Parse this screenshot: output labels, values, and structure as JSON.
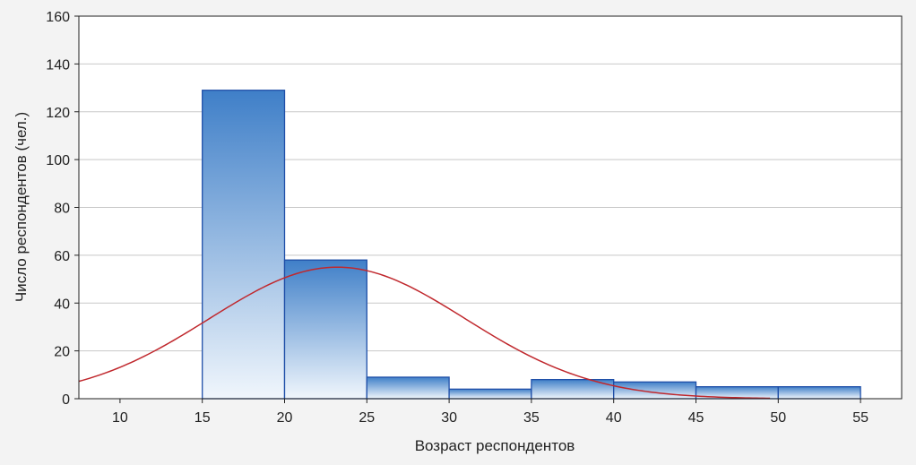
{
  "chart_data": {
    "type": "bar",
    "subtype": "histogram",
    "xlabel": "Возраст респондентов",
    "ylabel": "Число респондентов (чел.)",
    "xlim": [
      7.5,
      57.5
    ],
    "ylim": [
      0,
      160
    ],
    "x_ticks": [
      10,
      15,
      20,
      25,
      30,
      35,
      40,
      45,
      50,
      55
    ],
    "y_ticks": [
      0,
      20,
      40,
      60,
      80,
      100,
      120,
      140,
      160
    ],
    "grid": {
      "horizontal": true,
      "vertical": false
    },
    "bins": [
      {
        "from": 15,
        "to": 20,
        "value": 129
      },
      {
        "from": 20,
        "to": 25,
        "value": 58
      },
      {
        "from": 25,
        "to": 30,
        "value": 9
      },
      {
        "from": 30,
        "to": 35,
        "value": 4
      },
      {
        "from": 35,
        "to": 40,
        "value": 8
      },
      {
        "from": 40,
        "to": 45,
        "value": 7
      },
      {
        "from": 45,
        "to": 50,
        "value": 5
      },
      {
        "from": 50,
        "to": 55,
        "value": 5
      }
    ],
    "fitted_curve": {
      "type": "normal",
      "mean": 23.2,
      "sd": 7.8,
      "peak": 55,
      "x_range": [
        7.5,
        49.5
      ]
    },
    "colors": {
      "bar_top": "#3f7fc8",
      "bar_bottom": "#f0f6fc",
      "bar_stroke": "#1f4fa8",
      "curve": "#c0282d",
      "grid": "#c8c8c8",
      "plot_bg": "#ffffff",
      "frame": "#222222"
    }
  }
}
